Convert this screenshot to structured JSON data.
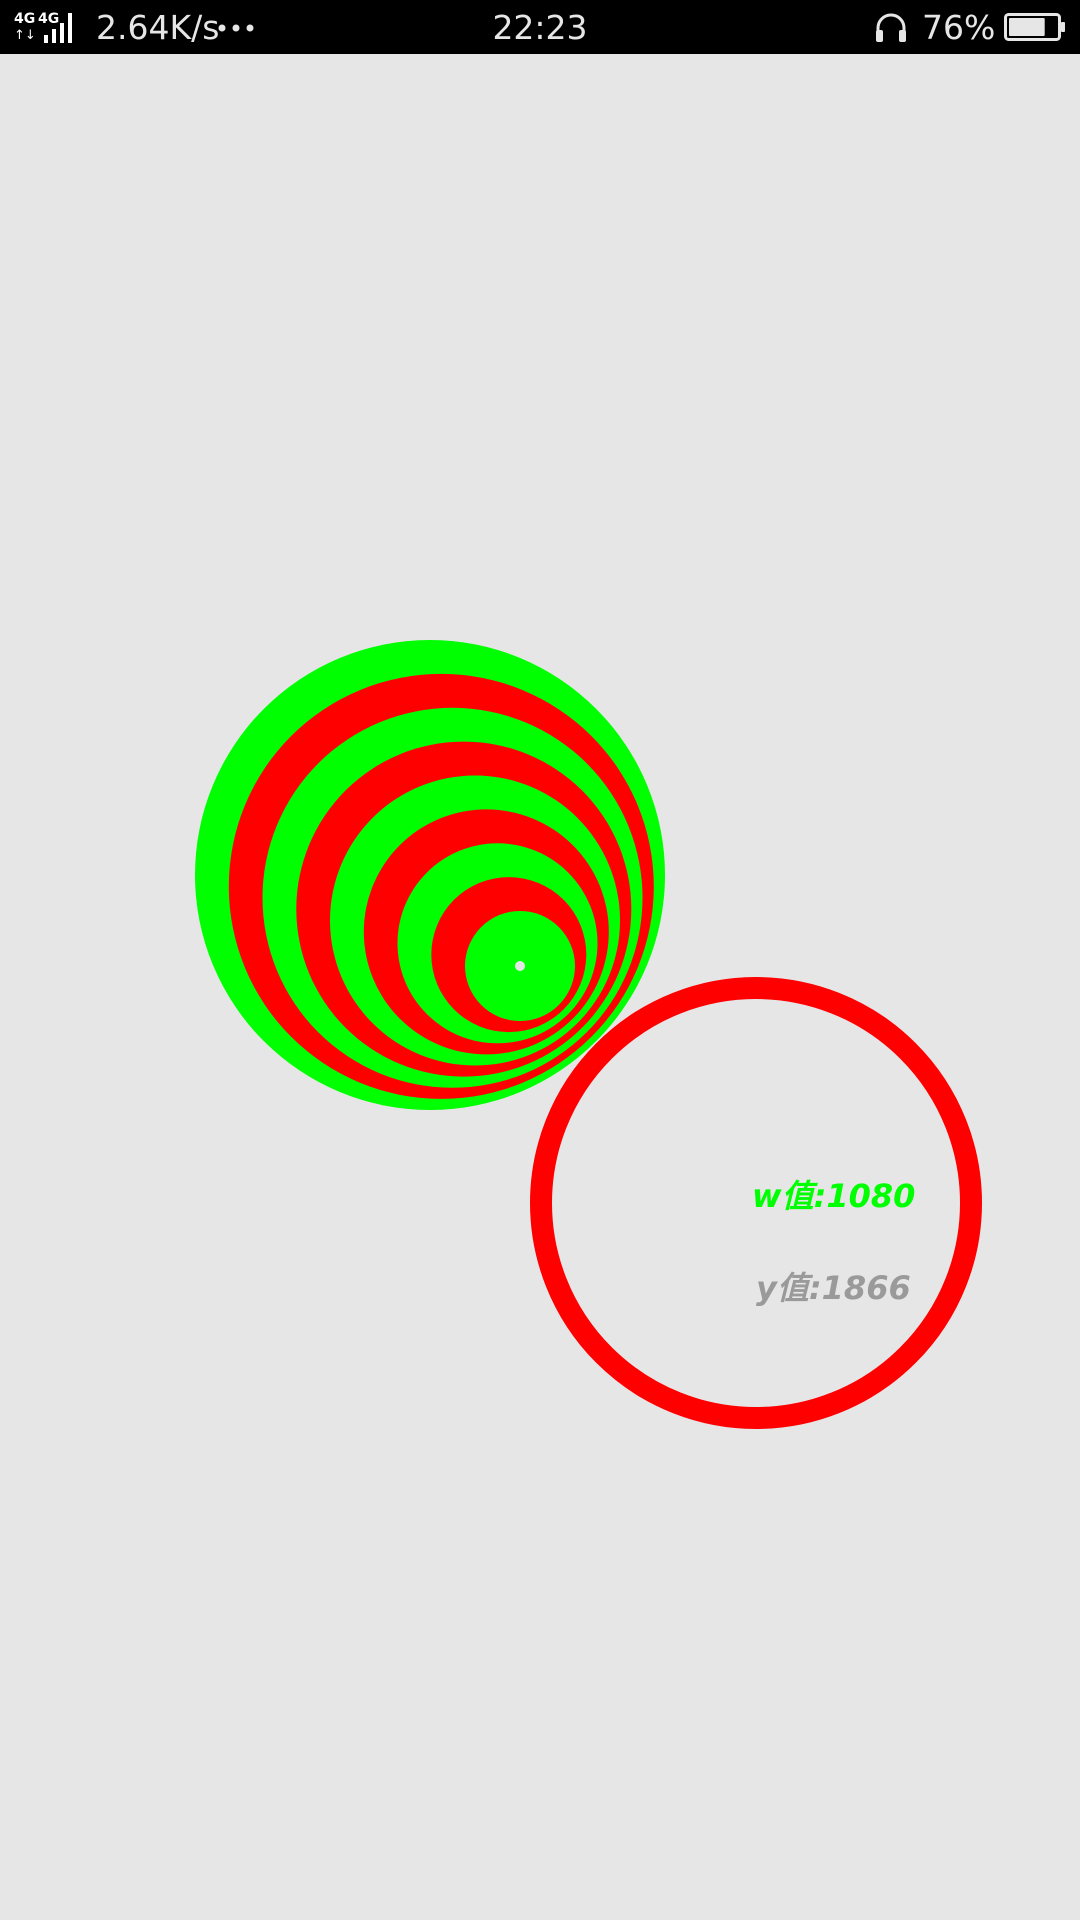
{
  "status_bar": {
    "network_icon": "4g-dual-signal-icon",
    "network_speed": "2.64K/s",
    "more_icon": "more-dots-icon",
    "time": "22:23",
    "headset_icon": "headset-icon",
    "battery_percent": "76%",
    "battery_icon": "battery-icon",
    "battery_level": 0.76
  },
  "canvas": {
    "rings_colors": [
      "#00ff00",
      "#ff0000"
    ],
    "outline_circle_color": "#ff0000",
    "center_dot_color": "#e6e6e7",
    "w_label": "w值:1080",
    "y_label": "y值:1866",
    "w_label_color": "#00ff00",
    "y_label_color": "#9a9a9a"
  }
}
